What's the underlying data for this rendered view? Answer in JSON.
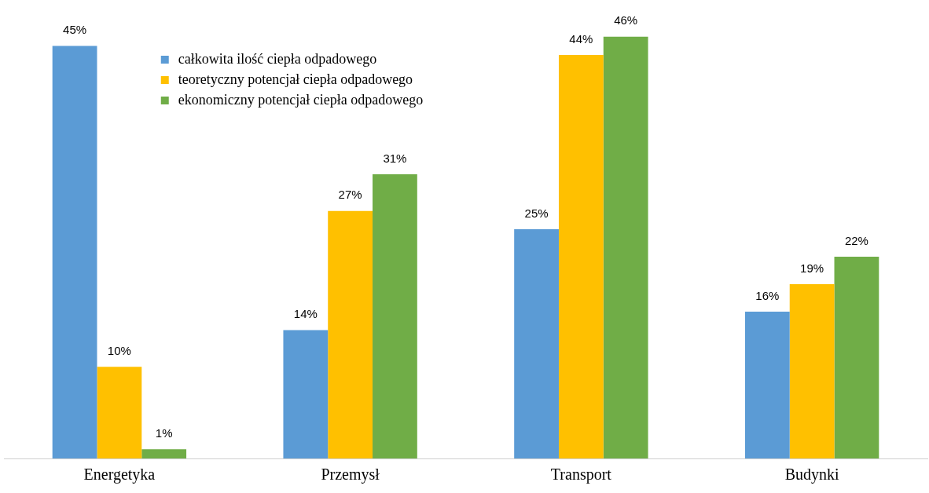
{
  "chart_data": {
    "type": "bar",
    "categories": [
      "Energetyka",
      "Przemysł",
      "Transport",
      "Budynki"
    ],
    "series": [
      {
        "name": "całkowita ilość ciepła odpadowego",
        "color": "#5b9bd5",
        "values": [
          45,
          14,
          25,
          16
        ],
        "value_labels": [
          "45%",
          "14%",
          "25%",
          "16%"
        ]
      },
      {
        "name": "teoretyczny potencjał ciepła odpadowego",
        "color": "#ffc000",
        "values": [
          10,
          27,
          44,
          19
        ],
        "value_labels": [
          "10%",
          "27%",
          "44%",
          "19%"
        ]
      },
      {
        "name": "ekonomiczny potencjał ciepła odpadowego",
        "color": "#70ad47",
        "values": [
          1,
          31,
          46,
          22
        ],
        "value_labels": [
          "1%",
          "31%",
          "46%",
          "22%"
        ]
      }
    ],
    "legend": "top",
    "grid": false
  }
}
